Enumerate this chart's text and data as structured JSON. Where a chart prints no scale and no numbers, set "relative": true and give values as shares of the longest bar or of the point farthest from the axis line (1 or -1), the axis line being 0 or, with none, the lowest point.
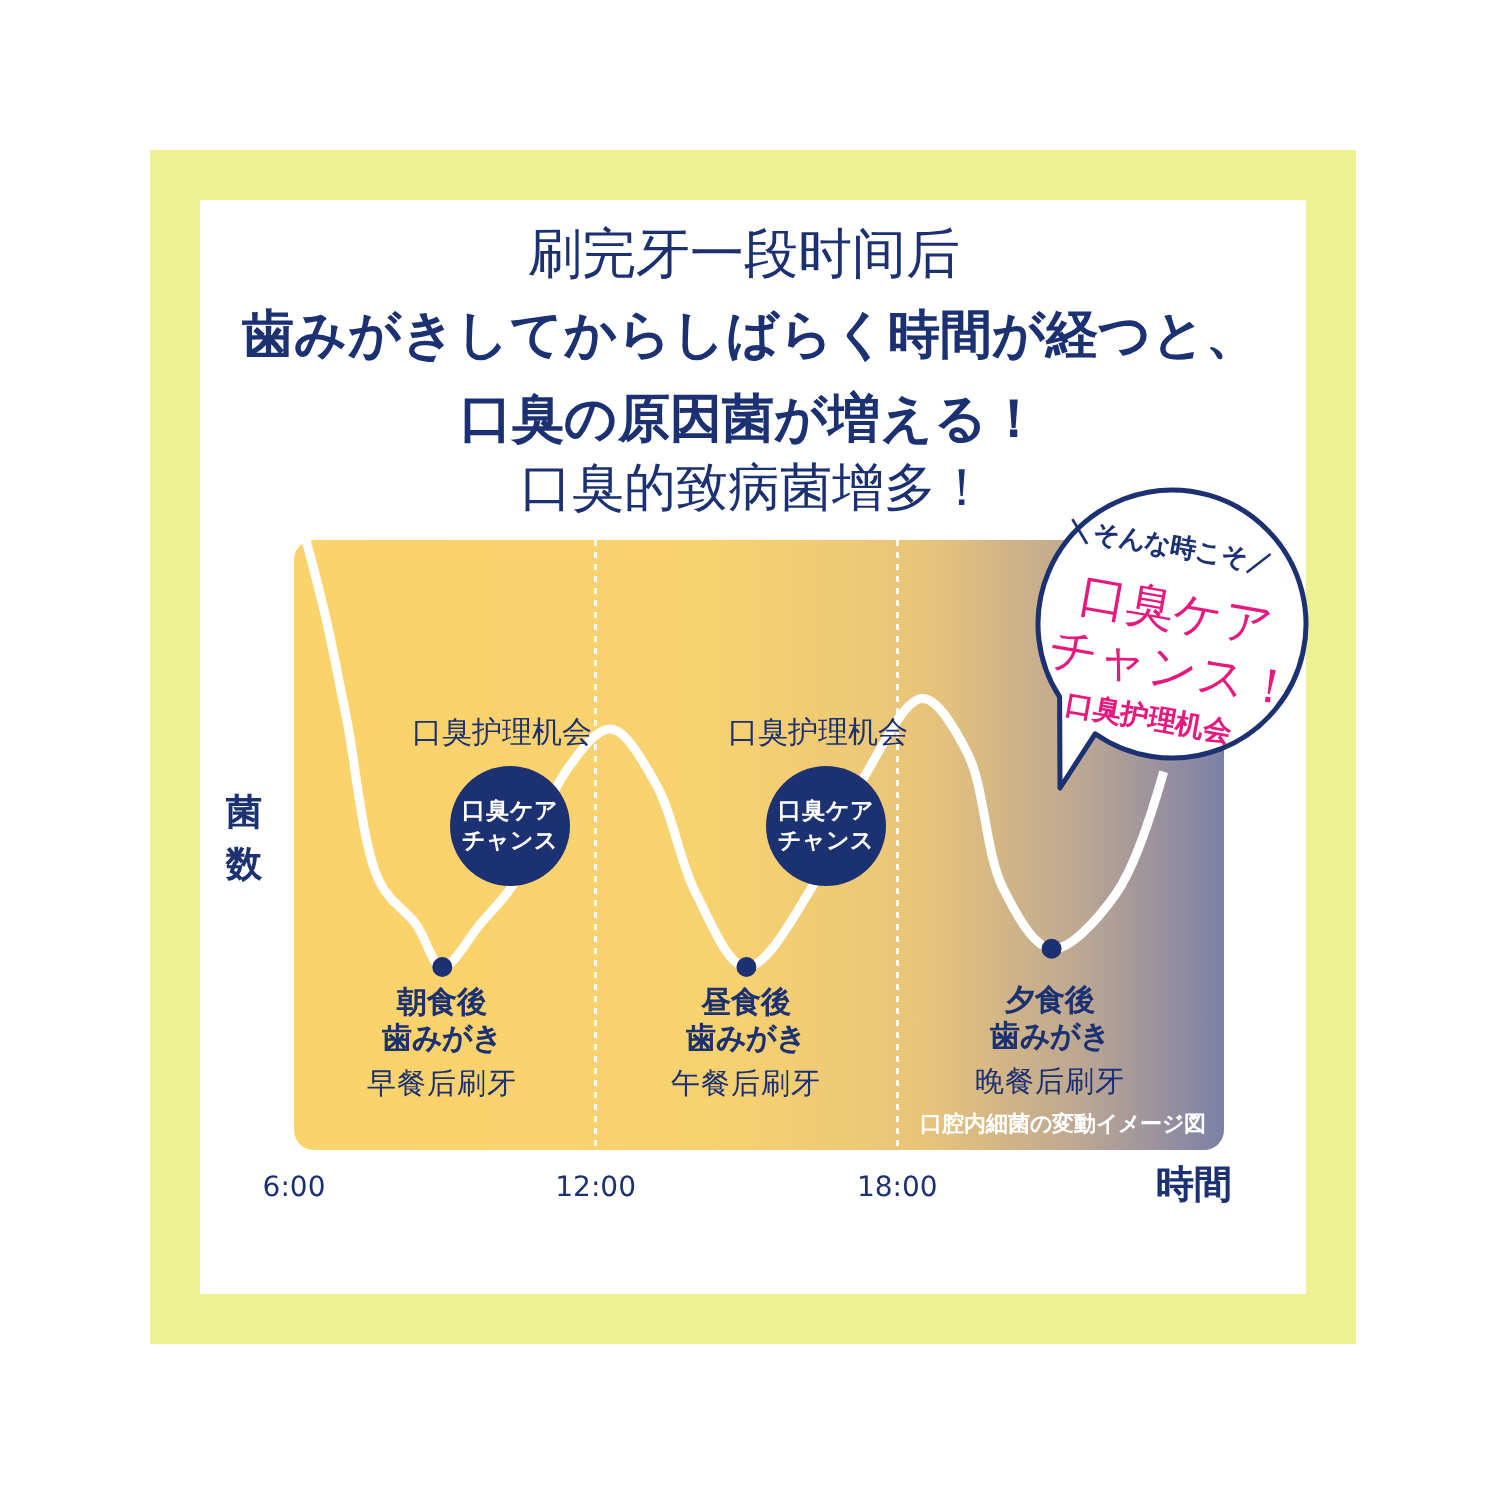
{
  "chart_data": {
    "type": "line",
    "title": "歯みがきしてからしばらく時間が経つと、口臭の原因菌が増える！",
    "subtitle": "口臭的致病菌增多！",
    "xlabel": "時間",
    "ylabel": "菌数",
    "relative": true,
    "xlim": [
      6,
      24.5
    ],
    "xticks": [
      {
        "value": 6,
        "label": "6:00"
      },
      {
        "value": 12,
        "label": "12:00"
      },
      {
        "value": 18,
        "label": "18:00"
      }
    ],
    "grid": "x",
    "tick_labels": "x",
    "series": [
      {
        "color": "#ffffff",
        "x": [
          6.24,
          6.64,
          7.04,
          7.7,
          8.43,
          8.95,
          9.7,
          10.4,
          11.4,
          12.3,
          13.2,
          14.0,
          15.0,
          16.37,
          17.4,
          18.5,
          19.4,
          20.1,
          21.07,
          22.35,
          23.3
        ],
        "values": [
          1.0,
          0.87,
          0.71,
          0.44,
          0.37,
          0.3,
          0.37,
          0.44,
          0.62,
          0.69,
          0.6,
          0.42,
          0.3,
          0.44,
          0.62,
          0.74,
          0.65,
          0.43,
          0.33,
          0.42,
          0.62
        ]
      },
      {
        "type": "scatter",
        "color": "#1c3172",
        "marker": "circle",
        "x": [
          8.95,
          15.0,
          21.07
        ],
        "values": [
          0.3,
          0.3,
          0.33
        ]
      }
    ],
    "annotations": [
      "刷完牙一段时间后",
      "口臭护理机会",
      "口臭护理机会",
      "口臭ケアチャンス",
      "口臭ケアチャンス",
      "朝食後",
      "歯みがき",
      "早餐后刷牙",
      "昼食後",
      "歯みがき",
      "午餐后刷牙",
      "夕食後",
      "歯みがき",
      "晚餐后刷牙",
      "＼そんな時こそ／",
      "口臭ケア",
      "チャンス！",
      "口臭护理机会",
      "口腔内細菌の変動イメージ図"
    ]
  }
}
